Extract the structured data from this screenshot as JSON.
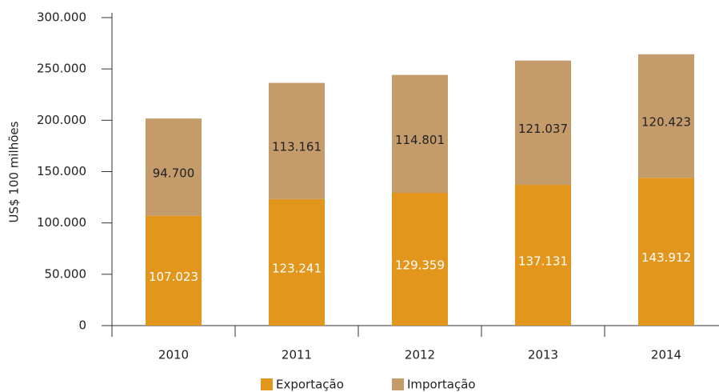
{
  "chart_data": {
    "type": "stacked_bar",
    "y_label": "US$ 100 milhões",
    "categories": [
      "2010",
      "2011",
      "2012",
      "2013",
      "2014"
    ],
    "series": [
      {
        "name": "Exportação",
        "color": "#e2961b",
        "values": [
          107023,
          123241,
          129359,
          137131,
          143912
        ],
        "value_labels": [
          "107.023",
          "123.241",
          "129.359",
          "137.131",
          "143.912"
        ]
      },
      {
        "name": "Importação",
        "color": "#c49b6b",
        "values": [
          94700,
          113161,
          114801,
          121037,
          120423
        ],
        "value_labels": [
          "94.700",
          "113.161",
          "114.801",
          "121.037",
          "120.423"
        ]
      }
    ],
    "ylim": [
      0,
      300000
    ],
    "yticks": [
      0,
      {
        "value": 50000,
        "label": "50.000"
      },
      {
        "value": 100000,
        "label": "100.000"
      },
      {
        "value": 150000,
        "label": "150.000"
      },
      {
        "value": 200000,
        "label": "200.000"
      },
      {
        "value": 250000,
        "label": "250.000"
      },
      {
        "value": 300000,
        "label": "300.000"
      }
    ],
    "legend": "bottom"
  }
}
